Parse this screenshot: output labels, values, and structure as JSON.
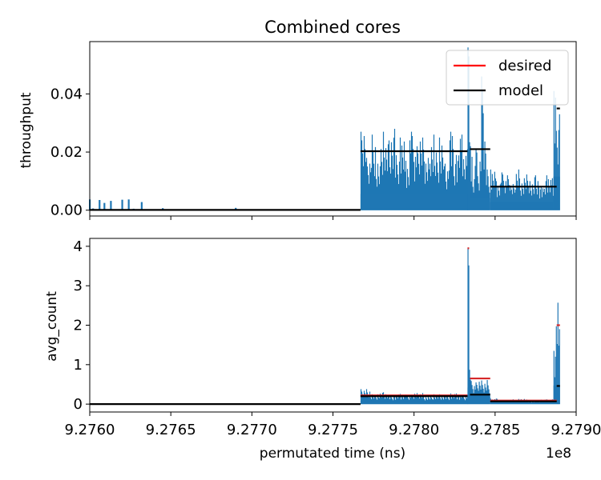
{
  "figure": {
    "title": "Combined cores",
    "xlabel": "permutated time (ns)",
    "x_offset_text": "1e8"
  },
  "colors": {
    "bars": "#1f77b4",
    "desired": "#d62728",
    "model": "#000000"
  },
  "legend": {
    "placement": "top-right",
    "items": [
      {
        "label": "desired",
        "color": "#ff0000"
      },
      {
        "label": "model",
        "color": "#000000"
      }
    ]
  },
  "chart_data": [
    {
      "type": "bar",
      "ylabel": "throughput",
      "xlim": [
        927600000,
        927900000
      ],
      "ylim": [
        -0.002,
        0.058
      ],
      "yticks": [
        0.0,
        0.02,
        0.04
      ],
      "ytick_labels": [
        "0.00",
        "0.02",
        "0.04"
      ],
      "xticks": [
        927600000,
        927650000,
        927700000,
        927750000,
        927800000,
        927850000,
        927900000
      ],
      "xtick_labels": [],
      "bars": [
        {
          "x": [
            927600000,
            927776000
          ],
          "values": [
            0.0037,
            0.0006,
            0.0035,
            0.0025,
            0.0032,
            0.0036,
            0.0037,
            0.0005,
            0.0028,
            0.0007,
            0.0002,
            0.0008
          ],
          "x_points": [
            927600000,
            927602000,
            927606000,
            927609000,
            927613000,
            927620000,
            927624000,
            927627000,
            927632000,
            927645000,
            927668000,
            927690000
          ]
        },
        {
          "segment": [
            927767000,
            927833000
          ],
          "envelope": [
            0.027,
            0.018,
            0.026,
            0.016,
            0.027,
            0.024,
            0.028,
            0.02,
            0.025,
            0.017,
            0.027,
            0.022,
            0.025,
            0.018,
            0.026,
            0.021,
            0.025,
            0.016,
            0.027,
            0.019,
            0.026,
            0.021
          ]
        },
        {
          "segment": [
            927833000,
            927834500
          ],
          "envelope": [
            0.056,
            0.03
          ]
        },
        {
          "segment": [
            927834500,
            927847000
          ],
          "envelope": [
            0.022,
            0.012,
            0.021,
            0.015,
            0.02,
            0.046,
            0.025,
            0.014,
            0.012
          ]
        },
        {
          "segment": [
            927847000,
            927886000
          ],
          "envelope": [
            0.014,
            0.01,
            0.013,
            0.012,
            0.009,
            0.014,
            0.011,
            0.013,
            0.01,
            0.012,
            0.008,
            0.012,
            0.011
          ]
        },
        {
          "segment": [
            927886000,
            927890000
          ],
          "envelope": [
            0.041,
            0.035,
            0.033
          ]
        }
      ],
      "series": [
        {
          "name": "model",
          "segments": [
            {
              "x": [
                927600000,
                927767000
              ],
              "y": 0.0001
            },
            {
              "x": [
                927767000,
                927833000
              ],
              "y": 0.0203
            },
            {
              "x": [
                927834500,
                927847000
              ],
              "y": 0.021
            },
            {
              "x": [
                927847000,
                927888000
              ],
              "y": 0.0081
            },
            {
              "x": [
                927888000,
                927890000
              ],
              "y": 0.035
            }
          ]
        },
        {
          "name": "desired",
          "segments": []
        }
      ]
    },
    {
      "type": "bar",
      "ylabel": "avg_count",
      "xlim": [
        927600000,
        927900000
      ],
      "ylim": [
        -0.2,
        4.2
      ],
      "yticks": [
        0,
        1,
        2,
        3,
        4
      ],
      "ytick_labels": [
        "0",
        "1",
        "2",
        "3",
        "4"
      ],
      "xticks": [
        927600000,
        927650000,
        927700000,
        927750000,
        927800000,
        927850000,
        927900000
      ],
      "xtick_labels": [
        "9.2760",
        "9.2765",
        "9.2770",
        "9.2775",
        "9.2780",
        "9.2785",
        "9.2790"
      ],
      "bars": [
        {
          "segment": [
            927767000,
            927833000
          ],
          "envelope": [
            0.38,
            0.25,
            0.3,
            0.22,
            0.26,
            0.24,
            0.28,
            0.21,
            0.25,
            0.23,
            0.27,
            0.22
          ]
        },
        {
          "segment": [
            927833000,
            927834500
          ],
          "envelope": [
            3.95,
            1.2
          ]
        },
        {
          "segment": [
            927834500,
            927847000
          ],
          "envelope": [
            0.62,
            0.55,
            0.6,
            0.58,
            0.61
          ]
        },
        {
          "segment": [
            927847000,
            927886000
          ],
          "envelope": [
            0.14,
            0.1,
            0.12,
            0.13,
            0.09,
            0.11,
            0.12
          ]
        },
        {
          "segment": [
            927886000,
            927890000
          ],
          "envelope": [
            1.35,
            2.72,
            1.9
          ]
        }
      ],
      "series": [
        {
          "name": "desired",
          "segments": [
            {
              "x": [
                927767000,
                927833000
              ],
              "y": 0.22
            },
            {
              "x": [
                927833000,
                927834000
              ],
              "y": 3.95
            },
            {
              "x": [
                927834500,
                927847000
              ],
              "y": 0.65
            },
            {
              "x": [
                927847000,
                927888000
              ],
              "y": 0.09
            },
            {
              "x": [
                927888000,
                927890000
              ],
              "y": 2.0
            }
          ]
        },
        {
          "name": "model",
          "segments": [
            {
              "x": [
                927600000,
                927767000
              ],
              "y": 0.0
            },
            {
              "x": [
                927767000,
                927833000
              ],
              "y": 0.2
            },
            {
              "x": [
                927834500,
                927847000
              ],
              "y": 0.24
            },
            {
              "x": [
                927847000,
                927888000
              ],
              "y": 0.07
            },
            {
              "x": [
                927888000,
                927890000
              ],
              "y": 0.46
            }
          ]
        }
      ]
    }
  ]
}
